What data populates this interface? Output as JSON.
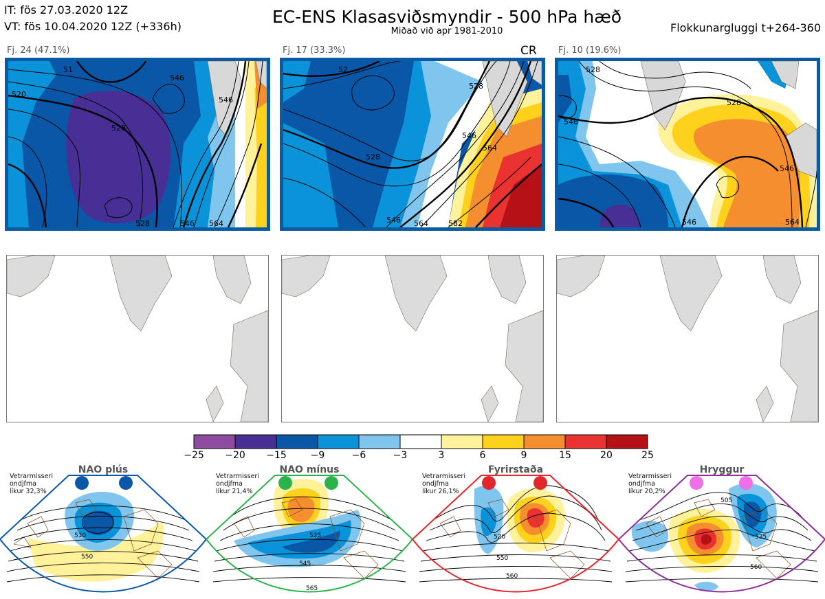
{
  "header": {
    "init_time": "IT: fös 27.03.2020 12Z",
    "valid_time": "VT: fös 10.04.2020 12Z  (+336h)",
    "title": "EC-ENS Klasasviðsmyndir - 500 hPa hæð",
    "subtitle": "Miðað við apr 1981-2010",
    "window": "Flokkunargluggi t+264-360"
  },
  "panels": [
    {
      "label": "Fj. 24 (47.1%)",
      "members": 24,
      "percent": 47.1,
      "contour_labels": [
        "528",
        "520",
        "546",
        "546",
        "528",
        "546",
        "564",
        "51"
      ]
    },
    {
      "label": "Fj. 17 (33.3%)",
      "members": 17,
      "percent": 33.3,
      "badge": "CR",
      "contour_labels": [
        "528",
        "546",
        "528",
        "564",
        "546",
        "564",
        "582",
        "52"
      ]
    },
    {
      "label": "Fj. 10 (19.6%)",
      "members": 10,
      "percent": 19.6,
      "contour_labels": [
        "528",
        "546",
        "546",
        "564",
        "546",
        "528"
      ]
    }
  ],
  "colorbar": {
    "ticks": [
      "−25",
      "−20",
      "−15",
      "−9",
      "−6",
      "−3",
      "3",
      "6",
      "9",
      "15",
      "20",
      "25"
    ],
    "colors": [
      "#8e4ba0",
      "#482f96",
      "#0a57a7",
      "#0b93da",
      "#7fc5ee",
      "#ffffff",
      "#fff29a",
      "#fed21c",
      "#f58e2f",
      "#ea3331",
      "#b51116"
    ]
  },
  "regimes": [
    {
      "name": "NAO plús",
      "prob": [
        "Vetrarmisseri",
        "ondjfma",
        "líkur 32,3%"
      ],
      "probability": 32.3,
      "color": "#0a57a7",
      "labels": [
        "510",
        "550"
      ]
    },
    {
      "name": "NAO mínus",
      "prob": [
        "Vetrarmisseri",
        "ondjfma",
        "líkur 21,4%"
      ],
      "probability": 21.4,
      "color": "#2ab34a",
      "labels": [
        "525",
        "545",
        "565"
      ]
    },
    {
      "name": "Fyrirstaða",
      "prob": [
        "Vetrarmisseri",
        "ondjfma",
        "líkur 26,1%"
      ],
      "probability": 26.1,
      "color": "#e4252c",
      "labels": [
        "520",
        "550",
        "560"
      ]
    },
    {
      "name": "Hryggur",
      "prob": [
        "Vetrarmisseri",
        "ondjfma",
        "líkur 20,2%"
      ],
      "probability": 20.2,
      "color": "#8f2d9a",
      "labels": [
        "505",
        "535",
        "560"
      ]
    }
  ]
}
